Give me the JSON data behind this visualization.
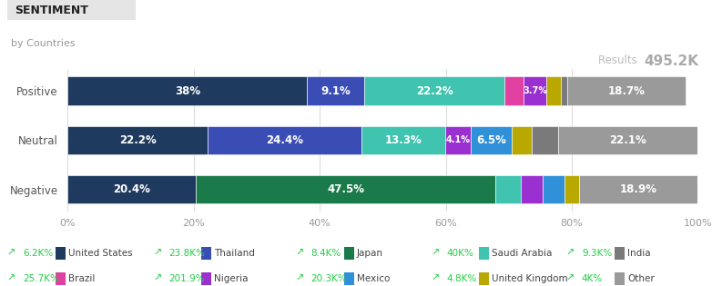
{
  "title": "SENTIMENT",
  "subtitle": "by Countries",
  "results_label": "Results",
  "results_value": "495.2K",
  "categories": [
    "Positive",
    "Neutral",
    "Negative"
  ],
  "countries": [
    "United States",
    "Thailand",
    "Japan",
    "Saudi Arabia",
    "Brazil",
    "Nigeria",
    "Mexico",
    "United Kingdom",
    "India",
    "Other"
  ],
  "colors": {
    "United States": "#1e3a5f",
    "Thailand": "#3a4db5",
    "Japan": "#1a7a4a",
    "Saudi Arabia": "#40c4b0",
    "Brazil": "#e040a0",
    "Nigeria": "#9b30d0",
    "Mexico": "#3090d8",
    "United Kingdom": "#b8a800",
    "India": "#7a7a7a",
    "Other": "#9a9a9a"
  },
  "data": {
    "Positive": {
      "United States": 38.0,
      "Thailand": 9.1,
      "Japan": 0.0,
      "Saudi Arabia": 22.2,
      "Brazil": 3.0,
      "Nigeria": 3.7,
      "Mexico": 0.0,
      "United Kingdom": 2.3,
      "India": 1.0,
      "Other": 18.7
    },
    "Neutral": {
      "United States": 22.2,
      "Thailand": 24.4,
      "Japan": 0.0,
      "Saudi Arabia": 13.3,
      "Brazil": 0.0,
      "Nigeria": 4.1,
      "Mexico": 6.5,
      "United Kingdom": 3.1,
      "India": 4.3,
      "Other": 22.1
    },
    "Negative": {
      "United States": 20.4,
      "Thailand": 0.0,
      "Japan": 47.5,
      "Saudi Arabia": 4.0,
      "Brazil": 0.0,
      "Nigeria": 3.5,
      "Mexico": 3.5,
      "United Kingdom": 2.2,
      "India": 0.0,
      "Other": 18.9
    }
  },
  "bar_labels": {
    "Positive": {
      "United States": "38%",
      "Thailand": "9.1%",
      "Saudi Arabia": "22.2%",
      "Nigeria": "3.7%",
      "Other": "18.7%"
    },
    "Neutral": {
      "United States": "22.2%",
      "Thailand": "24.4%",
      "Saudi Arabia": "13.3%",
      "Nigeria": "4.1%",
      "Mexico": "6.5%",
      "Other": "22.1%"
    },
    "Negative": {
      "United States": "20.4%",
      "Japan": "47.5%",
      "Other": "18.9%"
    }
  },
  "legend_items": [
    {
      "label": "6.2K%",
      "country": "United States"
    },
    {
      "label": "23.8K%",
      "country": "Thailand"
    },
    {
      "label": "8.4K%",
      "country": "Japan"
    },
    {
      "label": "40K%",
      "country": "Saudi Arabia"
    },
    {
      "label": "9.3K%",
      "country": "India"
    },
    {
      "label": "25.7K%",
      "country": "Brazil"
    },
    {
      "label": "201.9%",
      "country": "Nigeria"
    },
    {
      "label": "20.3K%",
      "country": "Mexico"
    },
    {
      "label": "4.8K%",
      "country": "United Kingdom"
    },
    {
      "label": "4K%",
      "country": "Other"
    }
  ],
  "background_color": "#ffffff"
}
